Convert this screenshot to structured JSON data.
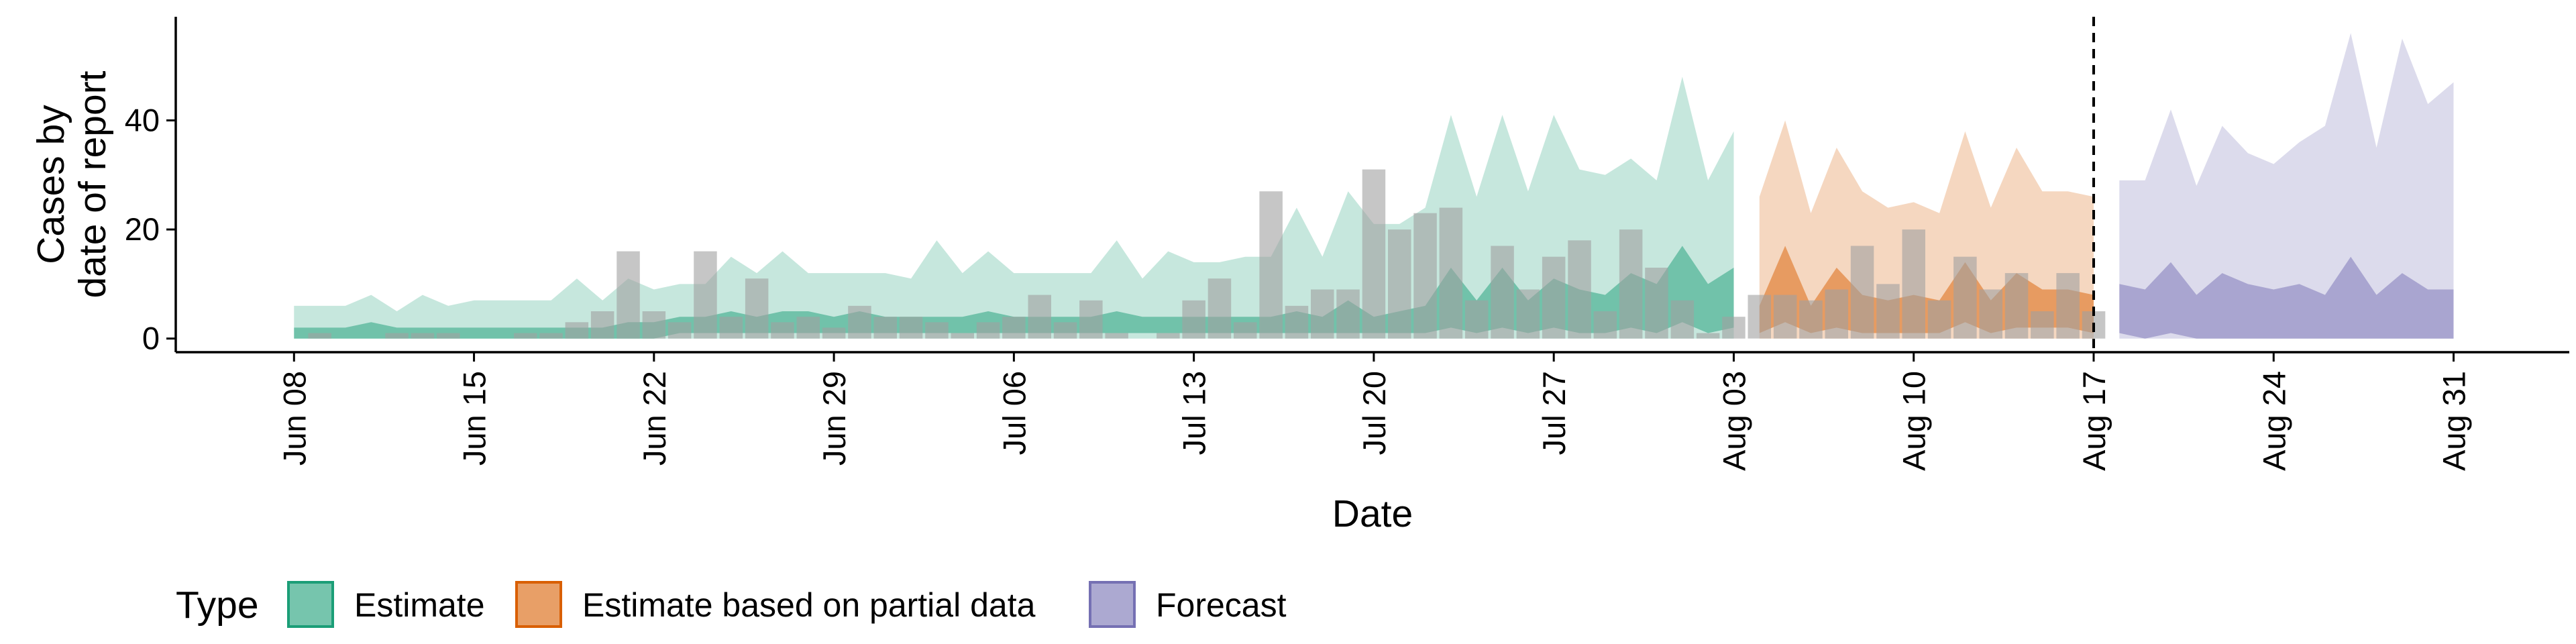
{
  "chart_data": {
    "type": "area",
    "xlabel": "Date",
    "ylabel_lines": [
      "Cases by",
      "date of report"
    ],
    "x_ticks": [
      "Jun 08",
      "Jun 15",
      "Jun 22",
      "Jun 29",
      "Jul 06",
      "Jul 13",
      "Jul 20",
      "Jul 27",
      "Aug 03",
      "Aug 10",
      "Aug 17",
      "Aug 24",
      "Aug 31"
    ],
    "x_tick_days": [
      0,
      7,
      14,
      21,
      28,
      35,
      42,
      49,
      56,
      63,
      70,
      77,
      84
    ],
    "x_range_days": [
      -4.6,
      88.5
    ],
    "y_ticks": [
      0,
      20,
      40
    ],
    "ylim": [
      -2.5,
      59
    ],
    "cutoff_day": 70,
    "legend": {
      "title": "Type",
      "position": "bottom",
      "entries": [
        {
          "label": "Estimate",
          "fill": "#1b9e77",
          "stroke": "#1b9e77"
        },
        {
          "label": "Estimate based on partial data",
          "fill": "#d95f02",
          "stroke": "#d95f02"
        },
        {
          "label": "Forecast",
          "fill": "#7570b3",
          "stroke": "#7570b3"
        }
      ]
    },
    "colors": {
      "estimate": "#1b9e77",
      "partial": "#d95f02",
      "forecast": "#7570b3",
      "bars": "#a0a0a0",
      "cutoff_line": "#000000"
    },
    "reported_cases": {
      "days": [
        0,
        1,
        2,
        3,
        4,
        5,
        6,
        7,
        8,
        9,
        10,
        11,
        12,
        13,
        14,
        15,
        16,
        17,
        18,
        19,
        20,
        21,
        22,
        23,
        24,
        25,
        26,
        27,
        28,
        29,
        30,
        31,
        32,
        33,
        34,
        35,
        36,
        37,
        38,
        39,
        40,
        41,
        42,
        43,
        44,
        45,
        46,
        47,
        48,
        49,
        50,
        51,
        52,
        53,
        54,
        55,
        56,
        57,
        58,
        59,
        60,
        61,
        62,
        63,
        64,
        65,
        66,
        67,
        68,
        69,
        70
      ],
      "values": [
        0,
        1,
        0,
        0,
        1,
        1,
        1,
        0,
        0,
        1,
        1,
        3,
        5,
        16,
        5,
        3,
        16,
        4,
        11,
        3,
        4,
        2,
        6,
        4,
        4,
        3,
        1,
        3,
        4,
        8,
        3,
        7,
        1,
        0,
        1,
        7,
        11,
        3,
        27,
        6,
        9,
        9,
        31,
        20,
        23,
        24,
        7,
        17,
        9,
        15,
        18,
        5,
        20,
        13,
        7,
        1,
        4,
        8,
        8,
        7,
        9,
        17,
        10,
        20,
        7,
        15,
        9,
        12,
        5,
        12,
        5
      ]
    },
    "series": [
      {
        "name": "Estimate",
        "days": [
          0,
          1,
          2,
          3,
          4,
          5,
          6,
          7,
          8,
          9,
          10,
          11,
          12,
          13,
          14,
          15,
          16,
          17,
          18,
          19,
          20,
          21,
          22,
          23,
          24,
          25,
          26,
          27,
          28,
          29,
          30,
          31,
          32,
          33,
          34,
          35,
          36,
          37,
          38,
          39,
          40,
          41,
          42,
          43,
          44,
          45,
          46,
          47,
          48,
          49,
          50,
          51,
          52,
          53,
          54,
          55,
          56
        ],
        "upper90": [
          6,
          6,
          6,
          8,
          5,
          8,
          6,
          7,
          7,
          7,
          7,
          11,
          7,
          11,
          9,
          10,
          10,
          15,
          12,
          16,
          12,
          12,
          12,
          12,
          11,
          18,
          12,
          16,
          12,
          12,
          12,
          12,
          18,
          11,
          16,
          14,
          14,
          15,
          15,
          24,
          15,
          27,
          21,
          21,
          24,
          41,
          26,
          41,
          27,
          41,
          31,
          30,
          33,
          29,
          48,
          29,
          38
        ],
        "lower90": [
          0,
          0,
          0,
          0,
          0,
          0,
          0,
          0,
          0,
          0,
          0,
          0,
          0,
          0,
          0,
          0,
          0,
          0,
          0,
          0,
          0,
          0,
          0,
          0,
          0,
          0,
          0,
          0,
          0,
          0,
          0,
          0,
          0,
          0,
          0,
          0,
          0,
          0,
          0,
          0,
          0,
          0,
          0,
          0,
          0,
          0,
          0,
          0,
          0,
          0,
          0,
          0,
          0,
          0,
          0,
          0,
          0
        ],
        "upper50": [
          2,
          2,
          2,
          3,
          2,
          2,
          2,
          2,
          2,
          2,
          2,
          2,
          2,
          3,
          3,
          4,
          4,
          5,
          4,
          5,
          5,
          4,
          5,
          4,
          4,
          4,
          4,
          5,
          4,
          4,
          4,
          4,
          5,
          4,
          4,
          4,
          4,
          4,
          4,
          5,
          4,
          7,
          4,
          5,
          6,
          13,
          7,
          13,
          7,
          11,
          9,
          8,
          12,
          10,
          17,
          10,
          13
        ],
        "lower50": [
          0,
          0,
          0,
          0,
          0,
          0,
          0,
          0,
          0,
          0,
          0,
          0,
          0,
          0,
          0,
          1,
          1,
          1,
          1,
          1,
          1,
          1,
          1,
          1,
          1,
          1,
          1,
          1,
          1,
          1,
          1,
          1,
          1,
          1,
          1,
          1,
          1,
          1,
          1,
          1,
          1,
          1,
          1,
          1,
          1,
          2,
          1,
          2,
          1,
          2,
          1,
          1,
          2,
          1,
          3,
          1,
          2
        ]
      },
      {
        "name": "Estimate based on partial data",
        "days": [
          57,
          58,
          59,
          60,
          61,
          62,
          63,
          64,
          65,
          66,
          67,
          68,
          69,
          70
        ],
        "upper90": [
          26,
          40,
          23,
          35,
          27,
          24,
          25,
          23,
          38,
          24,
          35,
          27,
          27,
          26
        ],
        "lower90": [
          0,
          0,
          0,
          0,
          0,
          0,
          0,
          0,
          0,
          0,
          0,
          0,
          0,
          0
        ],
        "upper50": [
          6,
          17,
          6,
          13,
          8,
          7,
          8,
          7,
          14,
          7,
          12,
          9,
          9,
          8
        ],
        "lower50": [
          1,
          3,
          1,
          2,
          1,
          1,
          1,
          1,
          3,
          1,
          2,
          2,
          2,
          1
        ]
      },
      {
        "name": "Forecast",
        "days": [
          71,
          72,
          73,
          74,
          75,
          76,
          77,
          78,
          79,
          80,
          81,
          82,
          83,
          84
        ],
        "upper90": [
          29,
          29,
          42,
          28,
          39,
          34,
          32,
          36,
          39,
          56,
          35,
          55,
          43,
          47
        ],
        "lower90": [
          0,
          0,
          0,
          0,
          0,
          0,
          0,
          0,
          0,
          0,
          0,
          0,
          0,
          0
        ],
        "upper50": [
          10,
          9,
          14,
          8,
          12,
          10,
          9,
          10,
          8,
          15,
          8,
          12,
          9,
          9
        ],
        "lower50": [
          1,
          0,
          1,
          0,
          0,
          0,
          0,
          0,
          0,
          0,
          0,
          0,
          0,
          0
        ]
      }
    ]
  }
}
